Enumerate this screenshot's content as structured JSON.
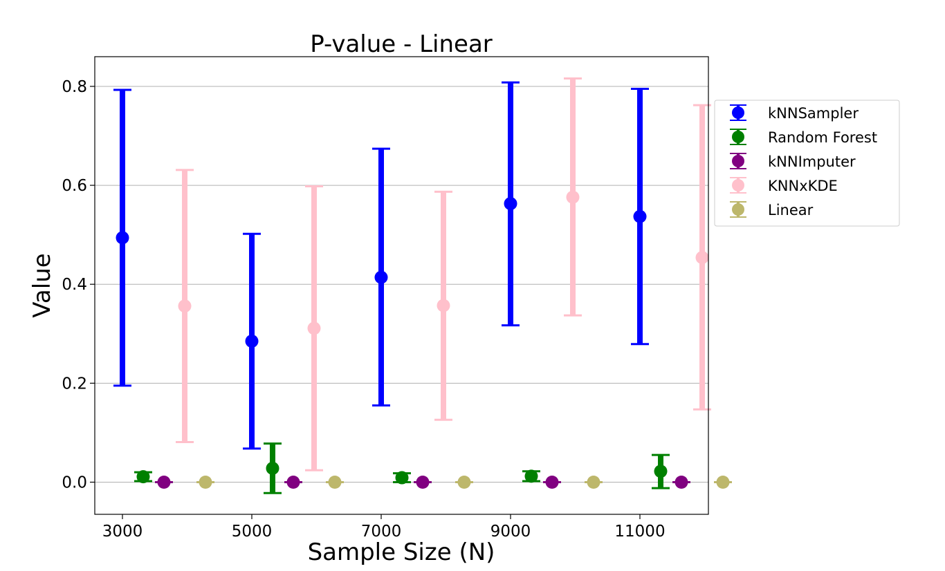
{
  "chart_data": {
    "type": "scatter",
    "title": "P-value - Linear",
    "xlabel": "Sample Size (N)",
    "ylabel": "Value",
    "categories": [
      "3000",
      "5000",
      "7000",
      "9000",
      "11000"
    ],
    "y_ticks": [
      0.0,
      0.2,
      0.4,
      0.6,
      0.8
    ],
    "y_tick_labels": [
      "0.0",
      "0.2",
      "0.4",
      "0.6",
      "0.8"
    ],
    "ylim": [
      -0.065,
      0.86
    ],
    "grid": "horizontal",
    "legend_position": "outside-right",
    "series": [
      {
        "name": "kNNSampler",
        "color": "#0000ff",
        "means": [
          0.494,
          0.285,
          0.414,
          0.563,
          0.537
        ],
        "lower": [
          0.195,
          0.068,
          0.155,
          0.317,
          0.279
        ],
        "upper": [
          0.793,
          0.502,
          0.674,
          0.808,
          0.795
        ]
      },
      {
        "name": "Random Forest",
        "color": "#008000",
        "means": [
          0.011,
          0.028,
          0.009,
          0.012,
          0.022
        ],
        "lower": [
          0.002,
          -0.022,
          0.0,
          0.002,
          -0.012
        ],
        "upper": [
          0.02,
          0.078,
          0.018,
          0.022,
          0.055
        ]
      },
      {
        "name": "kNNImputer",
        "color": "#800080",
        "means": [
          0.0,
          0.0,
          0.0,
          0.0,
          0.0
        ],
        "lower": [
          0.0,
          0.0,
          0.0,
          0.0,
          0.0
        ],
        "upper": [
          0.0,
          0.0,
          0.0,
          0.0,
          0.0
        ]
      },
      {
        "name": "KNNxKDE",
        "color": "#ffc0cb",
        "means": [
          0.356,
          0.311,
          0.357,
          0.576,
          0.454
        ],
        "lower": [
          0.081,
          0.024,
          0.126,
          0.337,
          0.147
        ],
        "upper": [
          0.631,
          0.598,
          0.587,
          0.816,
          0.762
        ]
      },
      {
        "name": "Linear",
        "color": "#bdb76b",
        "means": [
          0.0,
          0.0,
          0.0,
          0.0,
          0.0
        ],
        "lower": [
          0.0,
          0.0,
          0.0,
          0.0,
          0.0
        ],
        "upper": [
          0.0,
          0.0,
          0.0,
          0.0,
          0.0
        ]
      }
    ]
  }
}
